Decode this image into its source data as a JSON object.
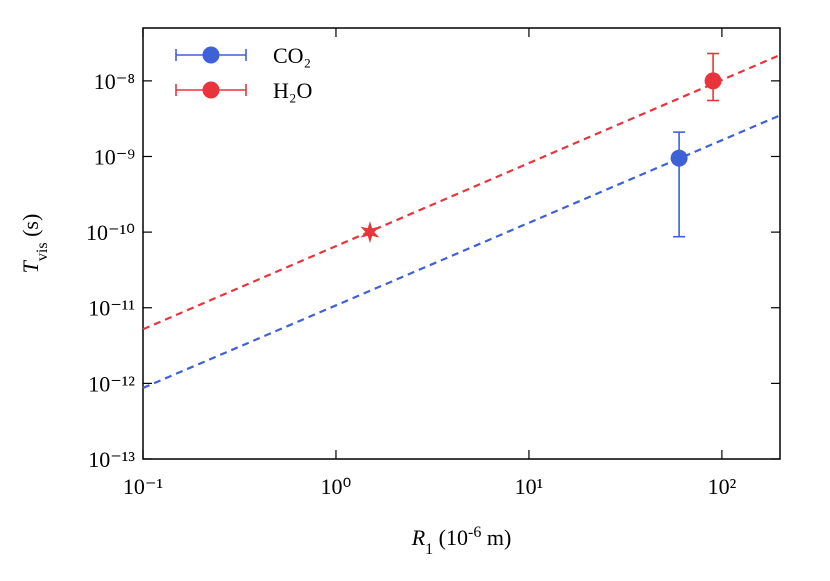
{
  "chart_data": {
    "type": "scatter",
    "x_label": [
      "R",
      "1",
      " (10",
      "-6",
      " m)"
    ],
    "y_label": [
      "T",
      "vis",
      " (s)"
    ],
    "log_x": true,
    "log_y": true,
    "xlim": [
      0.1,
      200
    ],
    "ylim": [
      1e-13,
      5e-08
    ],
    "xticks": [
      {
        "value": 0.1,
        "label": "10⁻¹"
      },
      {
        "value": 1,
        "label": "10⁰"
      },
      {
        "value": 10,
        "label": "10¹"
      },
      {
        "value": 100,
        "label": "10²"
      }
    ],
    "yticks": [
      {
        "value": 1e-13,
        "label": "10⁻¹³"
      },
      {
        "value": 1e-12,
        "label": "10⁻¹²"
      },
      {
        "value": 1e-11,
        "label": "10⁻¹¹"
      },
      {
        "value": 1e-10,
        "label": "10⁻¹⁰"
      },
      {
        "value": 1e-09,
        "label": "10⁻⁹"
      },
      {
        "value": 1e-08,
        "label": "10⁻⁸"
      }
    ],
    "legend": "upper left",
    "series": [
      {
        "name": "CO₂",
        "color": "#3e61d8",
        "x": [
          60
        ],
        "values": [
          9.5e-10
        ],
        "error_low": [
          8.7e-11
        ],
        "error_high": [
          2.1e-09
        ]
      },
      {
        "name": "H₂O",
        "color": "#e8353b",
        "x": [
          90
        ],
        "values": [
          1e-08
        ],
        "error_low": [
          5.5e-09
        ],
        "error_high": [
          2.3e-08
        ]
      }
    ],
    "fits": [
      {
        "color": "#e8353b",
        "x": [
          0.1,
          200
        ],
        "values": [
          5.2e-12,
          2.2e-08
        ]
      },
      {
        "color": "#3e61d8",
        "x": [
          0.1,
          200
        ],
        "values": [
          8.7e-13,
          3.5e-09
        ]
      }
    ],
    "markers": [
      {
        "color": "#e8353b",
        "marker": "star",
        "x": [
          1.5
        ],
        "values": [
          1e-10
        ]
      }
    ]
  }
}
